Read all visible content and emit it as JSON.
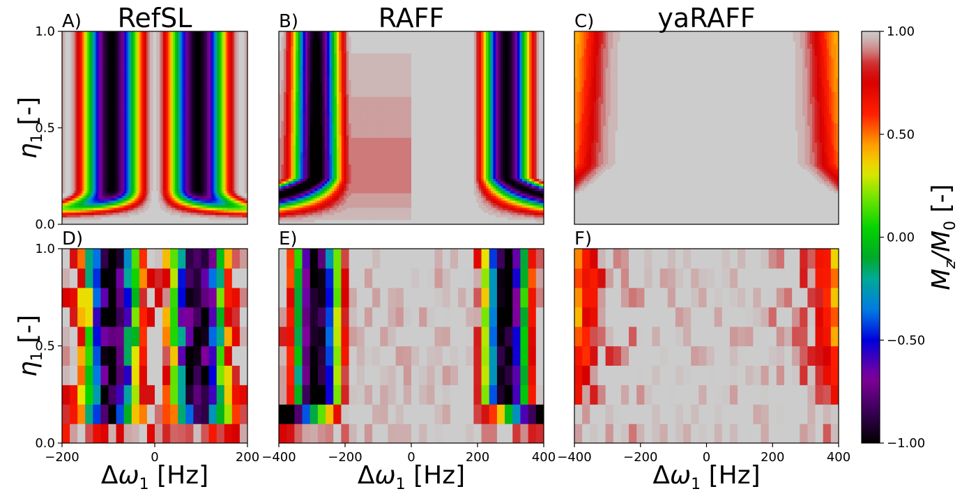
{
  "chart_data": {
    "type": "heatmap",
    "colormap": "nipy_spectral (reversed-like): -1 black, -0.75 purple, -0.5 blue, -0.25 cyan, 0 green, 0.25 yellow-green, 0.5 orange-yellow, 0.75 red, 1 light gray",
    "colorbar": {
      "label_main": "M",
      "label_sub1": "z",
      "label_slash": "/M",
      "label_sub2": "0",
      "label_unit": " [-]",
      "range": [
        -1.0,
        1.0
      ],
      "ticks": [
        1.0,
        0.5,
        0.0,
        -0.5,
        -1.0
      ],
      "tick_labels": [
        "1.00",
        "0.50",
        "0.00",
        "−0.50",
        "−1.00"
      ]
    },
    "ylabel": {
      "symbol": "η",
      "sub": "1",
      "unit": " [-]"
    },
    "xlabel": {
      "symbol": "Δω",
      "sub": "1",
      "unit": " [Hz]"
    },
    "ylim": [
      0.0,
      1.0
    ],
    "y_ticks": [
      0.0,
      0.5,
      1.0
    ],
    "y_tick_labels": [
      "0.0",
      "0.5",
      "1.0"
    ],
    "panels": [
      {
        "id": "A",
        "letter": "A)",
        "title": "RefSL",
        "kind": "simulated",
        "model": "refsl",
        "xlim": [
          -200,
          200
        ],
        "x_ticks": [],
        "x_tick_labels": []
      },
      {
        "id": "B",
        "letter": "B)",
        "title": "RAFF",
        "kind": "simulated",
        "model": "raff",
        "xlim": [
          -400,
          400
        ],
        "x_ticks": [],
        "x_tick_labels": []
      },
      {
        "id": "C",
        "letter": "C)",
        "title": "yaRAFF",
        "kind": "simulated",
        "model": "yaraff",
        "xlim": [
          -400,
          400
        ],
        "x_ticks": [],
        "x_tick_labels": []
      },
      {
        "id": "D",
        "letter": "D)",
        "title": "",
        "kind": "measured",
        "model": "refsl",
        "xlim": [
          -200,
          200
        ],
        "x_ticks": [
          -200,
          0,
          200
        ],
        "x_tick_labels": [
          "−200",
          "0",
          "200"
        ]
      },
      {
        "id": "E",
        "letter": "E)",
        "title": "",
        "kind": "measured",
        "model": "raff",
        "xlim": [
          -400,
          400
        ],
        "x_ticks": [
          -400,
          -200,
          0,
          200,
          400
        ],
        "x_tick_labels": [
          "−400",
          "−200",
          "0",
          "200",
          "400"
        ]
      },
      {
        "id": "F",
        "letter": "F)",
        "title": "",
        "kind": "measured",
        "model": "yaraff",
        "xlim": [
          -400,
          400
        ],
        "x_ticks": [
          -400,
          -200,
          0,
          200,
          400
        ],
        "x_tick_labels": [
          "−400",
          "−200",
          "0",
          "200",
          "400"
        ]
      }
    ]
  }
}
